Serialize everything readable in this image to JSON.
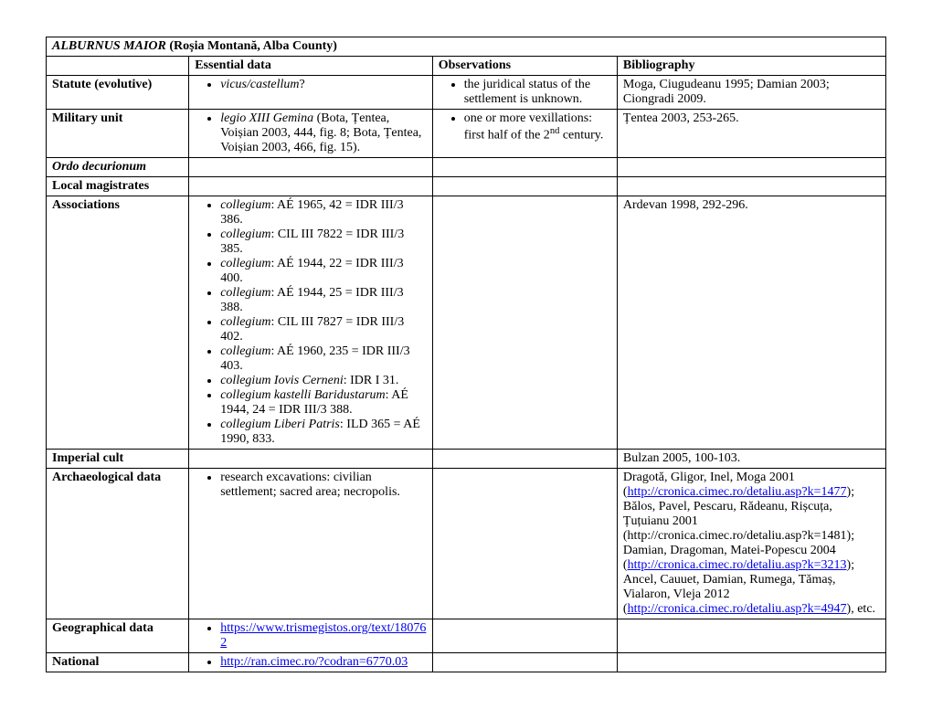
{
  "title_prefix_italic": "ALBURNUS MAIOR",
  "title_suffix": " (Roșia Montană, Alba County)",
  "headers": {
    "col0": "",
    "col1": "Essential data",
    "col2": "Observations",
    "col3": "Bibliography"
  },
  "rows": {
    "statute": {
      "label": "Statute (evolutive)",
      "essential_item_italic": "vicus/castellum",
      "essential_item_suffix": "?",
      "obs_item": "the juridical status of the settlement is unknown.",
      "bib": "Moga, Ciugudeanu 1995; Damian 2003; Ciongradi 2009."
    },
    "military": {
      "label": "Military unit",
      "essential_item_italic": "legio XIII Gemina",
      "essential_item_suffix": " (Bota, Țentea, Voișian 2003, 444, fig. 8; Bota, Țentea, Voișian 2003, 466, fig. 15).",
      "obs_item_pre": "one or more vexillations: first half of the 2",
      "obs_item_sup": "nd",
      "obs_item_post": " century.",
      "bib": "Țentea 2003, 253-265."
    },
    "ordo": {
      "label_italic": "Ordo decurionum"
    },
    "local": {
      "label": "Local magistrates"
    },
    "assoc": {
      "label": "Associations",
      "items": [
        {
          "italic": "collegium",
          "rest": ": AÉ 1965, 42 = IDR III/3 386."
        },
        {
          "italic": "collegium",
          "rest": ": CIL III 7822 = IDR III/3 385."
        },
        {
          "italic": "collegium",
          "rest": ": AÉ 1944, 22 = IDR III/3 400."
        },
        {
          "italic": "collegium",
          "rest": ": AÉ 1944, 25 = IDR III/3 388."
        },
        {
          "italic": "collegium",
          "rest": ": CIL III 7827 = IDR III/3 402."
        },
        {
          "italic": "collegium",
          "rest": ": AÉ 1960, 235 = IDR III/3 403."
        },
        {
          "italic": "collegium Iovis Cerneni",
          "rest": ": IDR I 31."
        },
        {
          "italic": "collegium kastelli Baridustarum",
          "rest": ": AÉ 1944, 24 = IDR III/3 388."
        },
        {
          "italic": "collegium Liberi Patris",
          "rest": ": ILD 365 = AÉ 1990, 833."
        }
      ],
      "bib": "Ardevan 1998, 292-296."
    },
    "imperial": {
      "label": "Imperial cult",
      "bib": "Bulzan 2005, 100-103."
    },
    "arch": {
      "label": "Archaeological data",
      "essential_item": "research excavations: civilian settlement; sacred area; necropolis.",
      "bib_parts": {
        "p1": "Dragotă, Gligor, Inel, Moga 2001 (",
        "l1": "http://cronica.cimec.ro/detaliu.asp?k=1477",
        "p2": "); Bălos, Pavel, Pescaru, Rădeanu, Rișcuța, Țuțuianu 2001 (http://cronica.cimec.ro/detaliu.asp?k=1481); Damian, Dragoman, Matei-Popescu 2004 (",
        "l2": "http://cronica.cimec.ro/detaliu.asp?k=3213",
        "p3": "); Ancel, Cauuet, Damian, Rumega, Tămaș, Vialaron, Vleja 2012 (",
        "l3": "http://cronica.cimec.ro/detaliu.asp?k=4947",
        "p4": "), etc."
      }
    },
    "geo": {
      "label": "Geographical data",
      "link": "https://www.trismegistos.org/text/180762"
    },
    "national": {
      "label": "National",
      "link": "http://ran.cimec.ro/?codran=6770.03"
    }
  }
}
